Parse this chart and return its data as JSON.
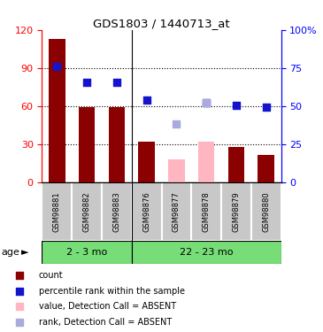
{
  "title": "GDS1803 / 1440713_at",
  "samples": [
    "GSM98881",
    "GSM98882",
    "GSM98883",
    "GSM98876",
    "GSM98877",
    "GSM98878",
    "GSM98879",
    "GSM98880"
  ],
  "bar_values": [
    113,
    59,
    59,
    32,
    null,
    null,
    28,
    22
  ],
  "bar_absent_values": [
    null,
    null,
    null,
    null,
    18,
    32,
    null,
    null
  ],
  "bar_color_normal": "#8B0000",
  "bar_color_absent": "#FFB6C1",
  "dot_values": [
    91,
    79,
    79,
    65,
    null,
    63,
    61,
    59
  ],
  "dot_absent_values": [
    null,
    null,
    null,
    null,
    46,
    63,
    null,
    null
  ],
  "dot_color_normal": "#1414CC",
  "dot_color_absent": "#AAAADD",
  "ylim_left": [
    0,
    120
  ],
  "ylim_right": [
    0,
    100
  ],
  "yticks_left": [
    0,
    30,
    60,
    90,
    120
  ],
  "ytick_labels_right": [
    "0",
    "25",
    "50",
    "75",
    "100%"
  ],
  "group1_label": "2 - 3 mo",
  "group2_label": "22 - 23 mo",
  "age_label": "age",
  "group_color": "#77DD77",
  "bg_color": "#C8C8C8",
  "legend_items": [
    {
      "label": "count",
      "color": "#8B0000"
    },
    {
      "label": "percentile rank within the sample",
      "color": "#1414CC"
    },
    {
      "label": "value, Detection Call = ABSENT",
      "color": "#FFB6C1"
    },
    {
      "label": "rank, Detection Call = ABSENT",
      "color": "#AAAADD"
    }
  ]
}
